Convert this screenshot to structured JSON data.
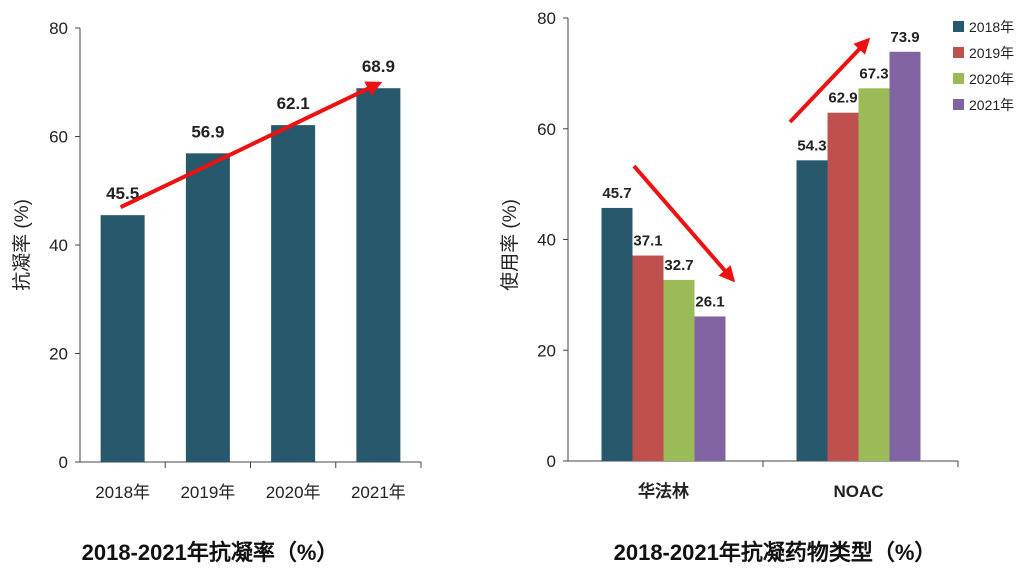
{
  "colors": {
    "2018年": "#27586b",
    "2019年": "#c0504d",
    "2020年": "#9bbb59",
    "2021年": "#8064a2",
    "arrow": "#ee1111"
  },
  "chart_data": [
    {
      "type": "bar",
      "caption": "2018-2021年抗凝率（%）",
      "ylabel": "抗凝率 (%)",
      "xlabel": "",
      "categories": [
        "2018年",
        "2019年",
        "2020年",
        "2021年"
      ],
      "values": [
        45.5,
        56.9,
        62.1,
        68.9
      ],
      "data_labels": [
        "45.5",
        "56.9",
        "62.1",
        "68.9"
      ],
      "ylim": [
        0,
        80
      ],
      "yticks": [
        "0",
        "20",
        "40",
        "60",
        "80"
      ],
      "grid": false,
      "legend": "none",
      "annotations": [
        {
          "type": "arrow",
          "direction": "up",
          "color": "#ee1111"
        }
      ]
    },
    {
      "type": "bar",
      "caption": "2018-2021年抗凝药物类型（%）",
      "ylabel": "使用率 (%)",
      "xlabel": "",
      "categories": [
        "华法林",
        "NOAC"
      ],
      "series": [
        {
          "name": "2018年",
          "values": [
            45.7,
            54.3
          ],
          "labels": [
            "45.7",
            "54.3"
          ]
        },
        {
          "name": "2019年",
          "values": [
            37.1,
            62.9
          ],
          "labels": [
            "37.1",
            "62.9"
          ]
        },
        {
          "name": "2020年",
          "values": [
            32.7,
            67.3
          ],
          "labels": [
            "32.7",
            "67.3"
          ]
        },
        {
          "name": "2021年",
          "values": [
            26.1,
            73.9
          ],
          "labels": [
            "26.1",
            "73.9"
          ]
        }
      ],
      "ylim": [
        0,
        80
      ],
      "yticks": [
        "0",
        "20",
        "40",
        "60",
        "80"
      ],
      "grid": false,
      "legend": "top-right",
      "annotations": [
        {
          "type": "arrow",
          "direction": "down",
          "group": "华法林",
          "color": "#ee1111"
        },
        {
          "type": "arrow",
          "direction": "up",
          "group": "NOAC",
          "color": "#ee1111"
        }
      ]
    }
  ]
}
